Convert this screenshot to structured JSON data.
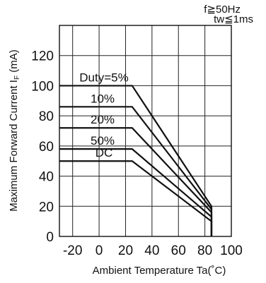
{
  "chart_data": {
    "type": "line",
    "title": "",
    "xlabel": "Ambient Temperature  Ta(˚C)",
    "ylabel": "Maximum Forward Current  I",
    "ylabel_subscript": "F",
    "ylabel_unit": "(mA)",
    "xlim": [
      -30,
      100
    ],
    "ylim": [
      0,
      140
    ],
    "x_ticks": [
      -20,
      0,
      20,
      40,
      60,
      80,
      100
    ],
    "y_ticks": [
      0,
      20,
      40,
      60,
      80,
      100,
      120
    ],
    "grid": true,
    "conditions": [
      "f≧50Hz",
      "tw≦1ms"
    ],
    "series": [
      {
        "name": "Duty=5%",
        "x": [
          -30,
          25,
          85,
          85
        ],
        "y": [
          100,
          100,
          20,
          0
        ]
      },
      {
        "name": "10%",
        "x": [
          -30,
          25,
          85,
          85
        ],
        "y": [
          86,
          86,
          18,
          0
        ]
      },
      {
        "name": "20%",
        "x": [
          -30,
          25,
          85,
          85
        ],
        "y": [
          72,
          72,
          16,
          0
        ]
      },
      {
        "name": "50%",
        "x": [
          -30,
          25,
          85,
          85
        ],
        "y": [
          58,
          58,
          13,
          0
        ]
      },
      {
        "name": "DC",
        "x": [
          -30,
          25,
          85,
          85
        ],
        "y": [
          50,
          50,
          10,
          0
        ]
      }
    ]
  }
}
